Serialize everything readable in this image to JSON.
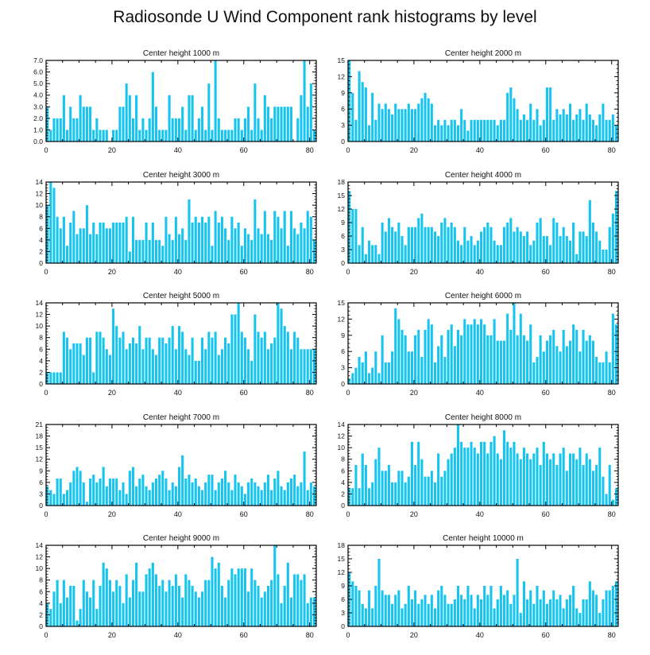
{
  "title": "Radiosonde U Wind Component rank histograms by level",
  "bar_color": "#15c4ef",
  "chart_data": [
    {
      "type": "bar",
      "title": "Center height 1000 m",
      "x_ticks": [
        "0",
        "20",
        "40",
        "60",
        "80"
      ],
      "xlim": [
        0,
        82
      ],
      "ylim": [
        0,
        7
      ],
      "y_ticks": [
        0,
        1,
        2,
        3,
        4,
        5,
        6,
        7
      ],
      "y_tick_labels": [
        "0.0",
        "1.0",
        "2.0",
        "3.0",
        "4.0",
        "5.0",
        "6.0",
        "7.0"
      ],
      "values": [
        3,
        1,
        2,
        2,
        2,
        4,
        1,
        3,
        2,
        2,
        4,
        3,
        3,
        3,
        1,
        2,
        1,
        1,
        1,
        0,
        1,
        1,
        3,
        3,
        5,
        4,
        2,
        4,
        1,
        2,
        1,
        2,
        6,
        3,
        1,
        1,
        1,
        4,
        2,
        2,
        2,
        3,
        1,
        4,
        4,
        1,
        2,
        3,
        1,
        5,
        1,
        7,
        2,
        1,
        1,
        1,
        1,
        2,
        2,
        1,
        2,
        3,
        1,
        5,
        2,
        1,
        4,
        3,
        2,
        3,
        3,
        3,
        3,
        3,
        3,
        0,
        2,
        4,
        7,
        3,
        5,
        1
      ]
    },
    {
      "type": "bar",
      "title": "Center height 2000 m",
      "x_ticks": [
        "0",
        "20",
        "40",
        "60",
        "80"
      ],
      "xlim": [
        0,
        82
      ],
      "ylim": [
        0,
        15
      ],
      "y_ticks": [
        0,
        3,
        6,
        9,
        12,
        15
      ],
      "y_tick_labels": [
        "0",
        "3",
        "6",
        "9",
        "12",
        "15"
      ],
      "values": [
        15,
        9,
        4,
        13,
        11,
        10,
        3,
        9,
        4,
        7,
        6,
        7,
        6,
        5,
        7,
        6,
        6,
        6,
        7,
        6,
        6,
        7,
        8,
        9,
        8,
        7,
        3,
        4,
        3,
        4,
        3,
        4,
        4,
        3,
        6,
        4,
        2,
        4,
        4,
        4,
        4,
        4,
        4,
        4,
        4,
        3,
        4,
        4,
        9,
        10,
        8,
        6,
        4,
        5,
        4,
        7,
        4,
        6,
        3,
        4,
        10,
        10,
        4,
        6,
        5,
        6,
        5,
        7,
        4,
        5,
        6,
        4,
        7,
        5,
        4,
        3,
        5,
        7,
        4,
        4,
        5,
        3
      ]
    },
    {
      "type": "bar",
      "title": "Center height 3000 m",
      "x_ticks": [
        "0",
        "20",
        "40",
        "60",
        "80"
      ],
      "xlim": [
        0,
        82
      ],
      "ylim": [
        0,
        14
      ],
      "y_ticks": [
        0,
        2,
        4,
        6,
        8,
        10,
        12,
        14
      ],
      "y_tick_labels": [
        "0",
        "2",
        "4",
        "6",
        "8",
        "10",
        "12",
        "14"
      ],
      "values": [
        10,
        14,
        13,
        8,
        6,
        8,
        3,
        7,
        9,
        5,
        6,
        6,
        10,
        5,
        7,
        5,
        7,
        7,
        6,
        6,
        7,
        7,
        7,
        7,
        8,
        2,
        8,
        4,
        4,
        4,
        7,
        4,
        7,
        4,
        4,
        3,
        8,
        5,
        4,
        8,
        5,
        6,
        4,
        11,
        7,
        8,
        7,
        8,
        7,
        8,
        3,
        9,
        7,
        8,
        6,
        4,
        8,
        6,
        7,
        3,
        6,
        5,
        4,
        11,
        6,
        5,
        9,
        5,
        4,
        9,
        8,
        6,
        9,
        3,
        9,
        6,
        5,
        7,
        6,
        9,
        8,
        4
      ]
    },
    {
      "type": "bar",
      "title": "Center height 4000 m",
      "x_ticks": [
        "0",
        "20",
        "40",
        "60",
        "80"
      ],
      "xlim": [
        0,
        82
      ],
      "ylim": [
        0,
        18
      ],
      "y_ticks": [
        0,
        3,
        6,
        9,
        12,
        15,
        18
      ],
      "y_tick_labels": [
        "0",
        "3",
        "6",
        "9",
        "12",
        "15",
        "18"
      ],
      "values": [
        16,
        12,
        12,
        4,
        8,
        2,
        5,
        4,
        4,
        2,
        9,
        7,
        10,
        8,
        7,
        9,
        6,
        4,
        8,
        8,
        8,
        10,
        11,
        8,
        8,
        8,
        7,
        6,
        9,
        10,
        8,
        9,
        8,
        5,
        4,
        8,
        5,
        6,
        4,
        5,
        7,
        8,
        9,
        8,
        5,
        4,
        4,
        8,
        9,
        10,
        7,
        8,
        7,
        6,
        7,
        4,
        5,
        9,
        10,
        6,
        6,
        4,
        10,
        9,
        6,
        8,
        6,
        5,
        9,
        2,
        7,
        7,
        6,
        14,
        9,
        7,
        5,
        3,
        3,
        8,
        11,
        16
      ]
    },
    {
      "type": "bar",
      "title": "Center height 5000 m",
      "x_ticks": [
        "0",
        "20",
        "40",
        "60",
        "80"
      ],
      "xlim": [
        0,
        82
      ],
      "ylim": [
        0,
        14
      ],
      "y_ticks": [
        0,
        2,
        4,
        6,
        8,
        10,
        12,
        14
      ],
      "y_tick_labels": [
        "0",
        "2",
        "4",
        "6",
        "8",
        "10",
        "12",
        "14"
      ],
      "values": [
        2,
        2,
        2,
        2,
        2,
        9,
        8,
        6,
        7,
        7,
        7,
        5,
        8,
        8,
        2,
        9,
        9,
        8,
        6,
        5,
        13,
        10,
        8,
        9,
        6,
        7,
        8,
        7,
        10,
        6,
        8,
        8,
        6,
        5,
        8,
        8,
        7,
        8,
        10,
        6,
        10,
        9,
        6,
        5,
        8,
        4,
        4,
        8,
        6,
        9,
        8,
        9,
        5,
        6,
        8,
        7,
        12,
        12,
        14,
        9,
        8,
        6,
        4,
        12,
        9,
        8,
        9,
        6,
        7,
        8,
        14,
        13,
        10,
        9,
        6,
        9,
        8,
        6,
        6,
        6,
        6,
        6
      ]
    },
    {
      "type": "bar",
      "title": "Center height 6000 m",
      "x_ticks": [
        "0",
        "20",
        "40",
        "60",
        "80"
      ],
      "xlim": [
        0,
        82
      ],
      "ylim": [
        0,
        15
      ],
      "y_ticks": [
        0,
        3,
        6,
        9,
        12,
        15
      ],
      "y_tick_labels": [
        "0",
        "3",
        "6",
        "9",
        "12",
        "15"
      ],
      "values": [
        1,
        2,
        3,
        5,
        4,
        6,
        2,
        3,
        6,
        2,
        9,
        4,
        4,
        6,
        14,
        12,
        10,
        9,
        6,
        6,
        9,
        10,
        5,
        10,
        12,
        11,
        4,
        7,
        9,
        5,
        10,
        11,
        7,
        10,
        9,
        12,
        11,
        11,
        12,
        11,
        12,
        11,
        9,
        9,
        12,
        8,
        8,
        8,
        13,
        10,
        15,
        9,
        13,
        9,
        8,
        11,
        4,
        5,
        9,
        6,
        8,
        9,
        10,
        7,
        6,
        10,
        7,
        8,
        11,
        10,
        6,
        10,
        8,
        9,
        8,
        5,
        4,
        4,
        6,
        4,
        13,
        11
      ]
    },
    {
      "type": "bar",
      "title": "Center height 7000 m",
      "x_ticks": [
        "0",
        "20",
        "40",
        "60",
        "80"
      ],
      "xlim": [
        0,
        82
      ],
      "ylim": [
        0,
        21
      ],
      "y_ticks": [
        0,
        3,
        6,
        9,
        12,
        15,
        18,
        21
      ],
      "y_tick_labels": [
        "0",
        "3",
        "6",
        "9",
        "12",
        "15",
        "18",
        "21"
      ],
      "values": [
        5,
        4,
        3,
        7,
        7,
        3,
        4,
        6,
        9,
        10,
        9,
        6,
        1,
        7,
        8,
        6,
        7,
        10,
        5,
        7,
        7,
        7,
        4,
        6,
        3,
        9,
        10,
        5,
        7,
        8,
        5,
        4,
        6,
        7,
        8,
        9,
        7,
        4,
        6,
        5,
        10,
        13,
        7,
        8,
        6,
        7,
        5,
        4,
        6,
        8,
        8,
        4,
        6,
        7,
        9,
        6,
        4,
        8,
        6,
        5,
        3,
        6,
        7,
        6,
        5,
        4,
        6,
        8,
        4,
        7,
        9,
        5,
        4,
        6,
        7,
        8,
        5,
        6,
        14,
        4,
        6,
        5
      ]
    },
    {
      "type": "bar",
      "title": "Center height 8000 m",
      "x_ticks": [
        "0",
        "20",
        "40",
        "60",
        "80"
      ],
      "xlim": [
        0,
        82
      ],
      "ylim": [
        0,
        14
      ],
      "y_ticks": [
        0,
        2,
        4,
        6,
        8,
        10,
        12,
        14
      ],
      "y_tick_labels": [
        "0",
        "2",
        "4",
        "6",
        "8",
        "10",
        "12",
        "14"
      ],
      "values": [
        3,
        3,
        7,
        3,
        9,
        7,
        3,
        4,
        8,
        10,
        6,
        6,
        7,
        4,
        4,
        6,
        6,
        4,
        5,
        11,
        7,
        11,
        8,
        5,
        5,
        6,
        4,
        9,
        5,
        6,
        8,
        9,
        10,
        14,
        11,
        10,
        10,
        11,
        10,
        9,
        11,
        11,
        9,
        11,
        12,
        9,
        8,
        13,
        11,
        10,
        11,
        9,
        8,
        10,
        9,
        8,
        9,
        10,
        7,
        11,
        9,
        8,
        9,
        7,
        9,
        10,
        6,
        9,
        9,
        8,
        10,
        7,
        9,
        8,
        6,
        7,
        10,
        5,
        2,
        7,
        1,
        3
      ]
    },
    {
      "type": "bar",
      "title": "Center height 9000 m",
      "x_ticks": [
        "0",
        "20",
        "40",
        "60",
        "80"
      ],
      "xlim": [
        0,
        82
      ],
      "ylim": [
        0,
        14
      ],
      "y_ticks": [
        0,
        2,
        4,
        6,
        8,
        10,
        12,
        14
      ],
      "y_tick_labels": [
        "0",
        "2",
        "4",
        "6",
        "8",
        "10",
        "12",
        "14"
      ],
      "values": [
        4,
        3,
        6,
        8,
        4,
        8,
        5,
        7,
        7,
        1,
        3,
        8,
        6,
        5,
        8,
        3,
        7,
        11,
        10,
        8,
        6,
        8,
        7,
        4,
        9,
        5,
        8,
        11,
        6,
        6,
        9,
        10,
        11,
        9,
        7,
        8,
        6,
        8,
        7,
        9,
        7,
        5,
        9,
        8,
        7,
        6,
        5,
        6,
        8,
        8,
        12,
        10,
        11,
        7,
        5,
        8,
        10,
        9,
        10,
        10,
        10,
        6,
        10,
        8,
        7,
        5,
        6,
        7,
        8,
        14,
        9,
        4,
        7,
        11,
        5,
        9,
        9,
        8,
        9,
        4,
        5,
        5
      ]
    },
    {
      "type": "bar",
      "title": "Center height 10000 m",
      "x_ticks": [
        "0",
        "20",
        "40",
        "60",
        "80"
      ],
      "xlim": [
        0,
        82
      ],
      "ylim": [
        0,
        18
      ],
      "y_ticks": [
        0,
        3,
        6,
        9,
        12,
        15,
        18
      ],
      "y_tick_labels": [
        "0",
        "3",
        "6",
        "9",
        "12",
        "15",
        "18"
      ],
      "values": [
        12,
        10,
        9,
        8,
        5,
        4,
        8,
        4,
        9,
        15,
        8,
        7,
        7,
        5,
        7,
        8,
        4,
        5,
        9,
        6,
        8,
        5,
        6,
        7,
        5,
        7,
        4,
        8,
        9,
        7,
        5,
        5,
        6,
        9,
        7,
        6,
        9,
        7,
        4,
        7,
        6,
        9,
        7,
        9,
        4,
        6,
        9,
        7,
        8,
        5,
        7,
        15,
        3,
        10,
        6,
        8,
        5,
        9,
        6,
        8,
        5,
        6,
        8,
        6,
        7,
        4,
        6,
        7,
        9,
        4,
        3,
        6,
        6,
        10,
        8,
        7,
        3,
        6,
        8,
        8,
        9,
        10
      ]
    }
  ]
}
